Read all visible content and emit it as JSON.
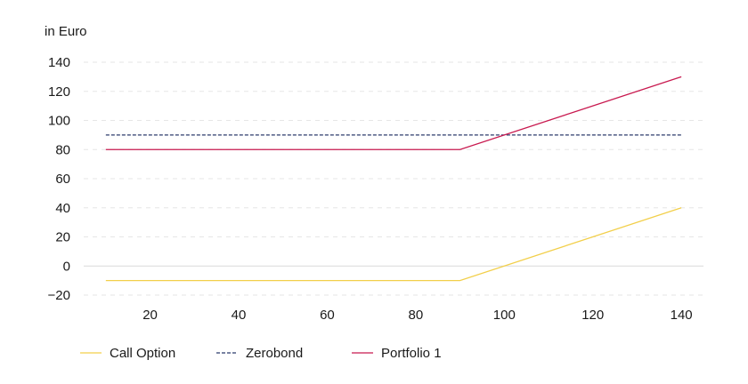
{
  "chart_data": {
    "type": "line",
    "unit_label": "in Euro",
    "x": [
      10,
      90,
      140
    ],
    "xticks": [
      20,
      40,
      60,
      80,
      100,
      120,
      140
    ],
    "yticks": [
      -20,
      0,
      20,
      40,
      60,
      80,
      100,
      120,
      140
    ],
    "xlim": [
      5,
      145
    ],
    "ylim": [
      -20,
      140
    ],
    "grid": true,
    "legend_position": "bottom-left",
    "series": [
      {
        "name": "Call Option",
        "values": [
          -10,
          -10,
          40
        ],
        "color": "#f2cf4a",
        "dash": "solid"
      },
      {
        "name": "Zerobond",
        "values": [
          90,
          90,
          90
        ],
        "color": "#2b3a6b",
        "dash": "dashed"
      },
      {
        "name": "Portfolio 1",
        "values": [
          80,
          80,
          130
        ],
        "color": "#c8194f",
        "dash": "solid"
      }
    ]
  }
}
